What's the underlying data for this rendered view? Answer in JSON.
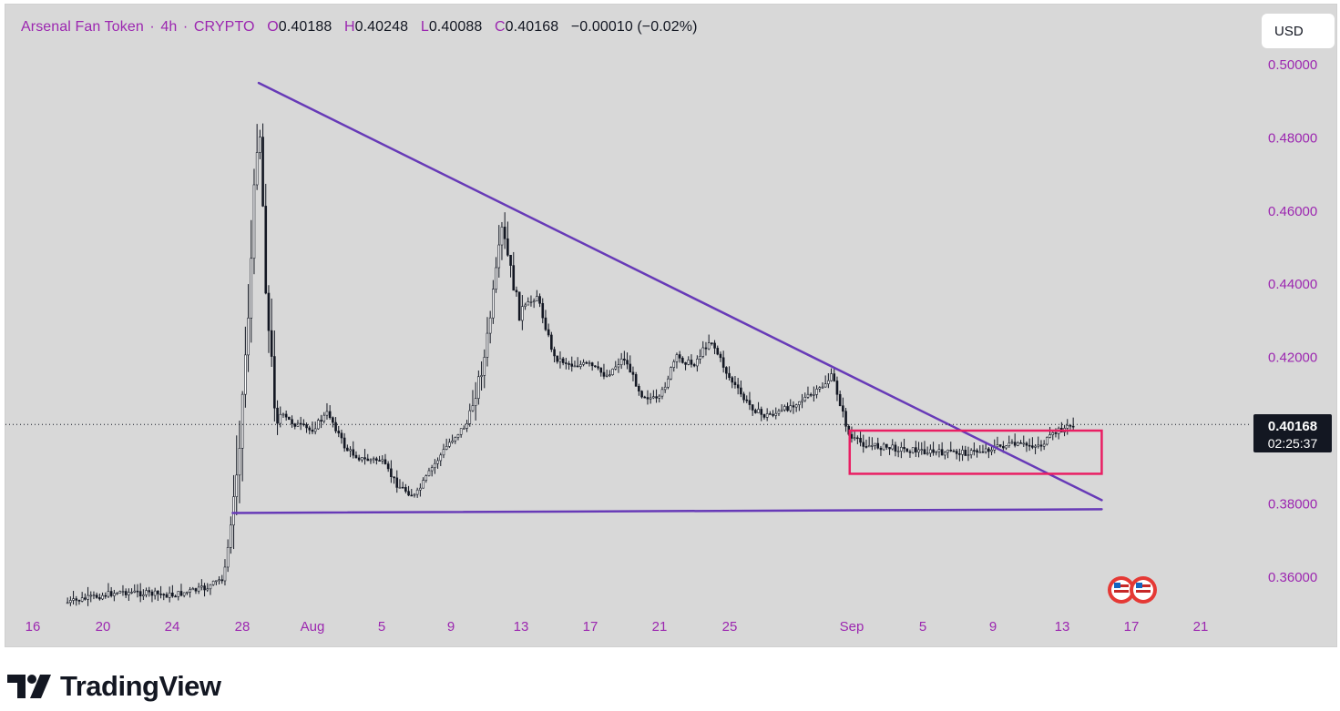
{
  "header": {
    "symbol": "Arsenal Fan Token",
    "interval": "4h",
    "exchange": "CRYPTO",
    "sep": "·",
    "open_label": "O",
    "open": "0.40188",
    "high_label": "H",
    "high": "0.40248",
    "low_label": "L",
    "low": "0.40088",
    "close_label": "C",
    "close": "0.40168",
    "change": "−0.00010 (−0.02%)"
  },
  "currency_button": "USD",
  "price_badge": {
    "price": "0.40168",
    "countdown": "02:25:37"
  },
  "brand": "TradingView",
  "colors": {
    "background": "#d8d8d8",
    "axis_text": "#9c27b0",
    "trendline": "#673ab7",
    "range_box": "#e91e63",
    "candle": "#131722",
    "badge_bg": "#131722"
  },
  "icons": [
    "tradingview-logo-icon",
    "us-flag-event-icon"
  ],
  "chart_data": {
    "type": "candlestick",
    "title": "Arsenal Fan Token · 4h · CRYPTO",
    "x_axis": {
      "ticks": [
        "16",
        "20",
        "24",
        "28",
        "Aug",
        "5",
        "9",
        "13",
        "17",
        "21",
        "25",
        "Sep",
        "5",
        "9",
        "13",
        "17",
        "21"
      ]
    },
    "y_axis": {
      "side": "right",
      "ticks": [
        "0.50000",
        "0.48000",
        "0.46000",
        "0.44000",
        "0.42000",
        "0.38000",
        "0.36000"
      ],
      "range": [
        0.3505,
        0.5093
      ]
    },
    "last_price": 0.40168,
    "price_path": [
      [
        "Jul 18",
        0.353
      ],
      [
        "Jul 21",
        0.356
      ],
      [
        "Jul 24",
        0.355
      ],
      [
        "Jul 26",
        0.357
      ],
      [
        "Jul 27",
        0.36
      ],
      [
        "Jul 27 12h",
        0.378
      ],
      [
        "Jul 28",
        0.405
      ],
      [
        "Jul 28 12h",
        0.44
      ],
      [
        "Jul 29",
        0.49
      ],
      [
        "Jul 29 12h",
        0.43
      ],
      [
        "Jul 30",
        0.405
      ],
      [
        "Jul 31",
        0.402
      ],
      [
        "Aug 1",
        0.4
      ],
      [
        "Aug 2",
        0.405
      ],
      [
        "Aug 3",
        0.395
      ],
      [
        "Aug 4",
        0.392
      ],
      [
        "Aug 5",
        0.392
      ],
      [
        "Aug 6",
        0.385
      ],
      [
        "Aug 7",
        0.382
      ],
      [
        "Aug 8",
        0.39
      ],
      [
        "Aug 9",
        0.397
      ],
      [
        "Aug 10",
        0.402
      ],
      [
        "Aug 11",
        0.42
      ],
      [
        "Aug 12",
        0.455
      ],
      [
        "Aug 13",
        0.432
      ],
      [
        "Aug 14",
        0.437
      ],
      [
        "Aug 15",
        0.42
      ],
      [
        "Aug 16",
        0.418
      ],
      [
        "Aug 17",
        0.418
      ],
      [
        "Aug 18",
        0.415
      ],
      [
        "Aug 19",
        0.42
      ],
      [
        "Aug 20",
        0.41
      ],
      [
        "Aug 21",
        0.408
      ],
      [
        "Aug 22",
        0.42
      ],
      [
        "Aug 23",
        0.418
      ],
      [
        "Aug 24",
        0.425
      ],
      [
        "Aug 25",
        0.415
      ],
      [
        "Aug 26",
        0.408
      ],
      [
        "Aug 27",
        0.404
      ],
      [
        "Aug 28",
        0.405
      ],
      [
        "Aug 29",
        0.408
      ],
      [
        "Aug 30",
        0.41
      ],
      [
        "Aug 31",
        0.415
      ],
      [
        "Sep 1",
        0.398
      ],
      [
        "Sep 2",
        0.396
      ],
      [
        "Sep 4",
        0.395
      ],
      [
        "Sep 6",
        0.394
      ],
      [
        "Sep 8",
        0.394
      ],
      [
        "Sep 10",
        0.396
      ],
      [
        "Sep 12",
        0.396
      ],
      [
        "Sep 13",
        0.4
      ],
      [
        "Sep 14",
        0.4017
      ]
    ],
    "drawings": [
      {
        "type": "trendline",
        "name": "descending-resistance",
        "from": [
          "Jul 29",
          0.495
        ],
        "to": [
          "Sep 15 12h",
          0.381
        ]
      },
      {
        "type": "trendline",
        "name": "horizontal-support",
        "from": [
          "Jul 27 12h",
          0.3775
        ],
        "to": [
          "Sep 15 12h",
          0.3785
        ]
      },
      {
        "type": "rectangle",
        "name": "consolidation-range",
        "from": [
          "Sep 1",
          0.4
        ],
        "to": [
          "Sep 15 12h",
          0.3882
        ]
      }
    ]
  }
}
